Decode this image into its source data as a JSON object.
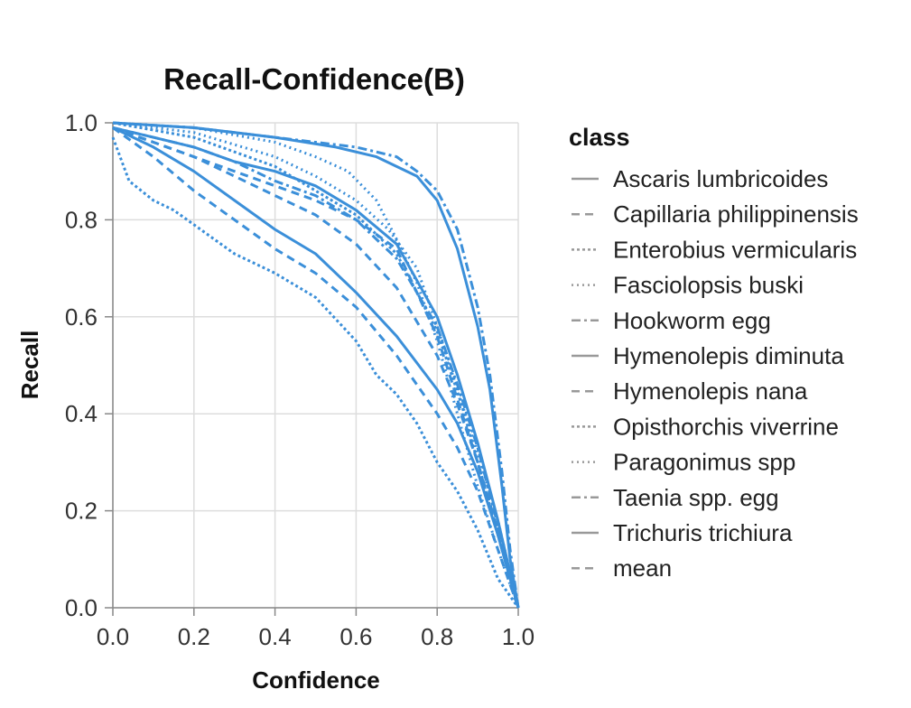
{
  "chart_data": {
    "type": "line",
    "title": "Recall-Confidence(B)",
    "xlabel": "Confidence",
    "ylabel": "Recall",
    "xlim": [
      0,
      1
    ],
    "ylim": [
      0,
      1
    ],
    "x_ticks": [
      "0.0",
      "0.2",
      "0.4",
      "0.6",
      "0.8",
      "1.0"
    ],
    "y_ticks": [
      "0.0",
      "0.2",
      "0.4",
      "0.6",
      "0.8",
      "1.0"
    ],
    "grid": true,
    "legend_title": "class",
    "legend_position": "right",
    "line_color": "#3b8fd9",
    "series": [
      {
        "name": "Ascaris lumbricoides",
        "dash": "solid",
        "points": [
          [
            0,
            1.0
          ],
          [
            0.2,
            0.99
          ],
          [
            0.4,
            0.97
          ],
          [
            0.55,
            0.95
          ],
          [
            0.65,
            0.93
          ],
          [
            0.75,
            0.89
          ],
          [
            0.8,
            0.84
          ],
          [
            0.85,
            0.74
          ],
          [
            0.9,
            0.58
          ],
          [
            0.93,
            0.45
          ],
          [
            0.96,
            0.25
          ],
          [
            0.98,
            0.1
          ],
          [
            1.0,
            0.0
          ]
        ]
      },
      {
        "name": "Capillaria philippinensis",
        "dash": "dash",
        "points": [
          [
            0,
            0.99
          ],
          [
            0.1,
            0.96
          ],
          [
            0.2,
            0.93
          ],
          [
            0.3,
            0.9
          ],
          [
            0.4,
            0.87
          ],
          [
            0.5,
            0.84
          ],
          [
            0.6,
            0.8
          ],
          [
            0.7,
            0.74
          ],
          [
            0.8,
            0.56
          ],
          [
            0.85,
            0.43
          ],
          [
            0.9,
            0.3
          ],
          [
            0.95,
            0.15
          ],
          [
            1.0,
            0.0
          ]
        ]
      },
      {
        "name": "Enterobius vermicularis",
        "dash": "dot-dense",
        "points": [
          [
            0,
            1.0
          ],
          [
            0.2,
            0.97
          ],
          [
            0.3,
            0.94
          ],
          [
            0.4,
            0.91
          ],
          [
            0.5,
            0.86
          ],
          [
            0.6,
            0.81
          ],
          [
            0.7,
            0.73
          ],
          [
            0.8,
            0.57
          ],
          [
            0.86,
            0.42
          ],
          [
            0.9,
            0.3
          ],
          [
            0.95,
            0.15
          ],
          [
            1.0,
            0.0
          ]
        ]
      },
      {
        "name": "Fasciolopsis buski",
        "dash": "dot",
        "points": [
          [
            0,
            1.0
          ],
          [
            0.2,
            0.99
          ],
          [
            0.4,
            0.96
          ],
          [
            0.5,
            0.93
          ],
          [
            0.58,
            0.9
          ],
          [
            0.65,
            0.84
          ],
          [
            0.7,
            0.76
          ],
          [
            0.75,
            0.67
          ],
          [
            0.8,
            0.55
          ],
          [
            0.85,
            0.4
          ],
          [
            0.9,
            0.25
          ],
          [
            0.95,
            0.12
          ],
          [
            1.0,
            0.0
          ]
        ]
      },
      {
        "name": "Hookworm egg",
        "dash": "dashdot",
        "points": [
          [
            0,
            1.0
          ],
          [
            0.2,
            0.99
          ],
          [
            0.4,
            0.97
          ],
          [
            0.6,
            0.95
          ],
          [
            0.7,
            0.93
          ],
          [
            0.75,
            0.9
          ],
          [
            0.8,
            0.86
          ],
          [
            0.85,
            0.78
          ],
          [
            0.9,
            0.62
          ],
          [
            0.93,
            0.48
          ],
          [
            0.96,
            0.28
          ],
          [
            0.98,
            0.12
          ],
          [
            1.0,
            0.0
          ]
        ]
      },
      {
        "name": "Hymenolepis diminuta",
        "dash": "solid",
        "points": [
          [
            0,
            0.99
          ],
          [
            0.1,
            0.95
          ],
          [
            0.2,
            0.9
          ],
          [
            0.3,
            0.84
          ],
          [
            0.4,
            0.78
          ],
          [
            0.5,
            0.73
          ],
          [
            0.6,
            0.65
          ],
          [
            0.7,
            0.56
          ],
          [
            0.8,
            0.45
          ],
          [
            0.85,
            0.38
          ],
          [
            0.9,
            0.28
          ],
          [
            0.95,
            0.15
          ],
          [
            1.0,
            0.0
          ]
        ]
      },
      {
        "name": "Hymenolepis nana",
        "dash": "dash",
        "points": [
          [
            0,
            0.99
          ],
          [
            0.1,
            0.93
          ],
          [
            0.2,
            0.86
          ],
          [
            0.3,
            0.8
          ],
          [
            0.4,
            0.74
          ],
          [
            0.5,
            0.69
          ],
          [
            0.6,
            0.62
          ],
          [
            0.7,
            0.52
          ],
          [
            0.8,
            0.4
          ],
          [
            0.85,
            0.33
          ],
          [
            0.9,
            0.24
          ],
          [
            0.95,
            0.12
          ],
          [
            1.0,
            0.0
          ]
        ]
      },
      {
        "name": "Opisthorchis viverrine",
        "dash": "dot-dense",
        "points": [
          [
            0,
            0.97
          ],
          [
            0.04,
            0.88
          ],
          [
            0.1,
            0.84
          ],
          [
            0.15,
            0.82
          ],
          [
            0.2,
            0.79
          ],
          [
            0.3,
            0.73
          ],
          [
            0.4,
            0.69
          ],
          [
            0.5,
            0.64
          ],
          [
            0.6,
            0.55
          ],
          [
            0.65,
            0.48
          ],
          [
            0.7,
            0.44
          ],
          [
            0.75,
            0.38
          ],
          [
            0.8,
            0.3
          ],
          [
            0.85,
            0.24
          ],
          [
            0.9,
            0.16
          ],
          [
            0.95,
            0.06
          ],
          [
            1.0,
            0.0
          ]
        ]
      },
      {
        "name": "Paragonimus spp",
        "dash": "dot",
        "points": [
          [
            0,
            1.0
          ],
          [
            0.2,
            0.98
          ],
          [
            0.4,
            0.93
          ],
          [
            0.5,
            0.89
          ],
          [
            0.6,
            0.84
          ],
          [
            0.68,
            0.78
          ],
          [
            0.75,
            0.7
          ],
          [
            0.8,
            0.58
          ],
          [
            0.85,
            0.45
          ],
          [
            0.9,
            0.32
          ],
          [
            0.95,
            0.18
          ],
          [
            1.0,
            0.0
          ]
        ]
      },
      {
        "name": "Taenia spp. egg",
        "dash": "dashdot",
        "points": [
          [
            0,
            0.99
          ],
          [
            0.1,
            0.97
          ],
          [
            0.2,
            0.95
          ],
          [
            0.3,
            0.92
          ],
          [
            0.4,
            0.88
          ],
          [
            0.5,
            0.85
          ],
          [
            0.6,
            0.8
          ],
          [
            0.7,
            0.72
          ],
          [
            0.8,
            0.58
          ],
          [
            0.85,
            0.46
          ],
          [
            0.9,
            0.33
          ],
          [
            0.95,
            0.17
          ],
          [
            1.0,
            0.0
          ]
        ]
      },
      {
        "name": "Trichuris trichiura",
        "dash": "solid",
        "points": [
          [
            0,
            0.99
          ],
          [
            0.1,
            0.97
          ],
          [
            0.2,
            0.95
          ],
          [
            0.3,
            0.92
          ],
          [
            0.4,
            0.9
          ],
          [
            0.5,
            0.87
          ],
          [
            0.6,
            0.82
          ],
          [
            0.7,
            0.75
          ],
          [
            0.8,
            0.6
          ],
          [
            0.85,
            0.48
          ],
          [
            0.9,
            0.34
          ],
          [
            0.95,
            0.18
          ],
          [
            1.0,
            0.0
          ]
        ]
      },
      {
        "name": "mean",
        "dash": "dash",
        "points": [
          [
            0,
            0.99
          ],
          [
            0.1,
            0.96
          ],
          [
            0.2,
            0.93
          ],
          [
            0.3,
            0.89
          ],
          [
            0.4,
            0.85
          ],
          [
            0.5,
            0.81
          ],
          [
            0.6,
            0.75
          ],
          [
            0.7,
            0.66
          ],
          [
            0.8,
            0.52
          ],
          [
            0.85,
            0.42
          ],
          [
            0.9,
            0.3
          ],
          [
            0.95,
            0.16
          ],
          [
            1.0,
            0.0
          ]
        ]
      }
    ]
  }
}
